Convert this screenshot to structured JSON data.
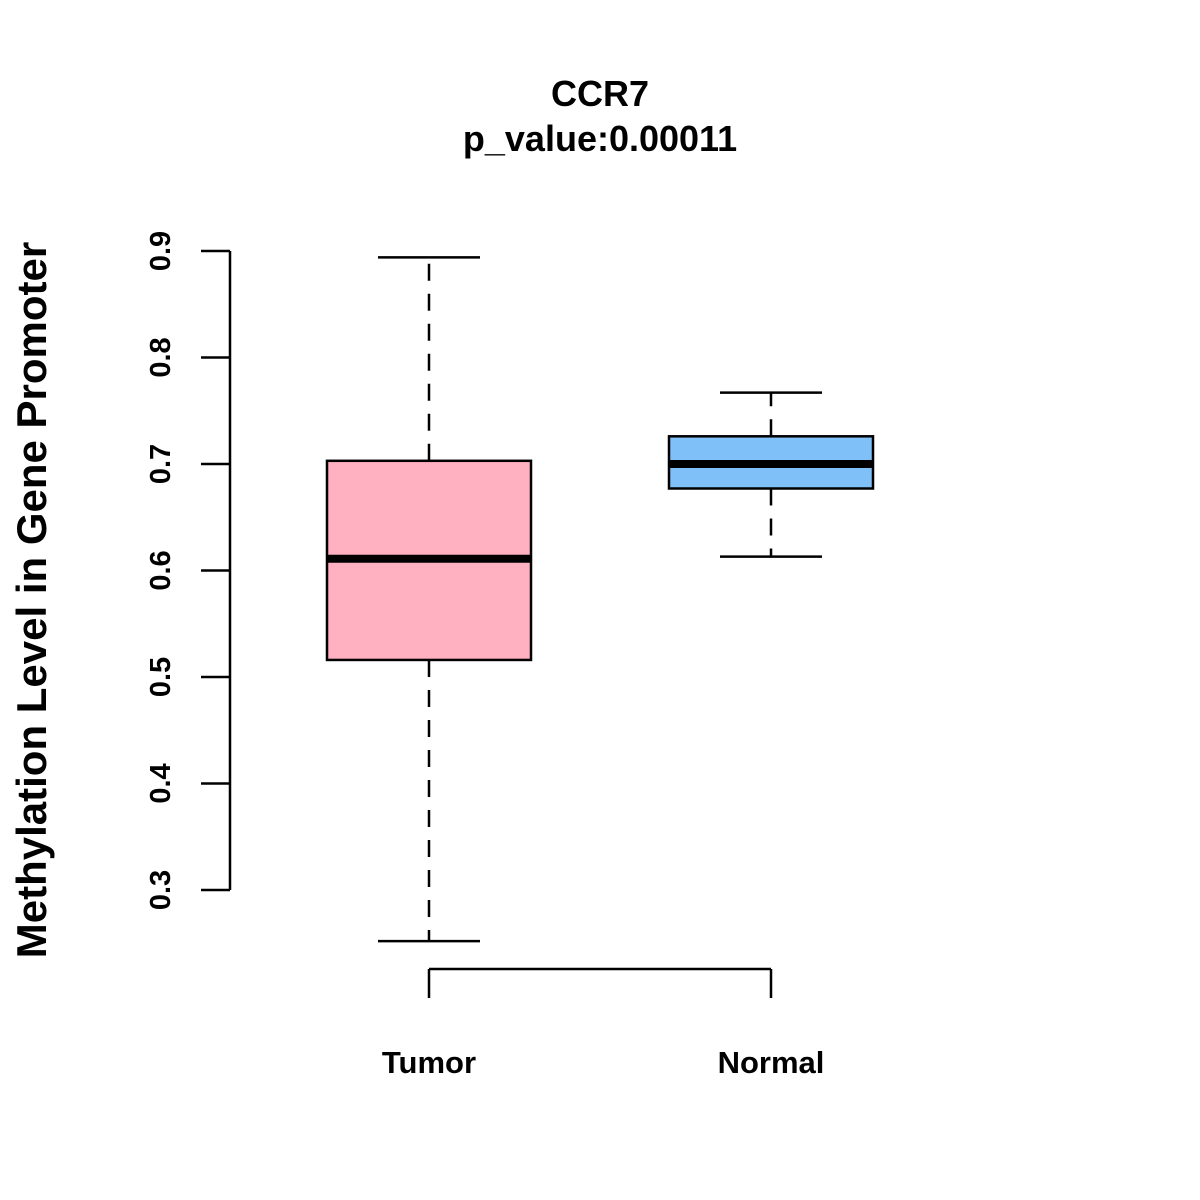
{
  "chart_data": {
    "type": "boxplot",
    "title": "CCR7",
    "subtitle": "p_value:0.00011",
    "xlabel": "",
    "ylabel": "Methylation Level in Gene Promoter",
    "ylim": [
      0.3,
      0.9
    ],
    "yticks": [
      0.3,
      0.4,
      0.5,
      0.6,
      0.7,
      0.8,
      0.9
    ],
    "ytick_labels": [
      "0.3",
      "0.4",
      "0.5",
      "0.6",
      "0.7",
      "0.8",
      "0.9"
    ],
    "grid": false,
    "categories": [
      "Tumor",
      "Normal"
    ],
    "boxes": [
      {
        "name": "Tumor",
        "color": "#FFB0C1",
        "whisker_low": 0.252,
        "q1": 0.516,
        "median": 0.611,
        "q3": 0.703,
        "whisker_high": 0.894
      },
      {
        "name": "Normal",
        "color": "#7EC0F7",
        "whisker_low": 0.613,
        "q1": 0.677,
        "median": 0.7,
        "q3": 0.726,
        "whisker_high": 0.767
      }
    ]
  }
}
